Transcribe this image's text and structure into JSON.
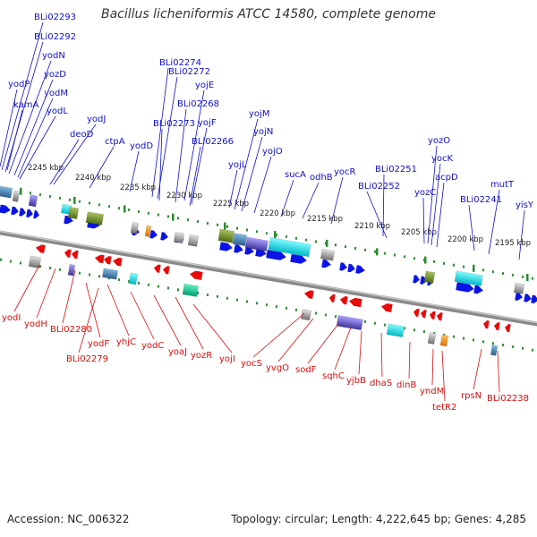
{
  "title": "Bacillus licheniformis ATCC 14580, complete genome",
  "footer": {
    "accession": "Accession: NC_006322",
    "summary": "Topology: circular; Length: 4,222,645 bp; Genes: 4,285"
  },
  "colors": {
    "forward_label": "#1010c8",
    "reverse_label": "#d01010",
    "forward_gene": "#0a14e6",
    "reverse_gene": "#e80a0a",
    "backbone": "#8a8a8a",
    "tick": "#2e8b2e"
  },
  "scale_labels": [
    {
      "text": "2245 kbp"
    },
    {
      "text": "2240 kbp"
    },
    {
      "text": "2235 kbp"
    },
    {
      "text": "2230 kbp"
    },
    {
      "text": "2225 kbp"
    },
    {
      "text": "2220 kbp"
    },
    {
      "text": "2215 kbp"
    },
    {
      "text": "2210 kbp"
    },
    {
      "text": "2205 kbp"
    },
    {
      "text": "2200 kbp"
    },
    {
      "text": "2195 kbp"
    }
  ],
  "forward_labels": [
    "BLi02293",
    "BLi02292",
    "yodN",
    "yozD",
    "yodM",
    "yodP",
    "kamA",
    "yodL",
    "yodJ",
    "deoD",
    "ctpA",
    "yodD",
    "BLi02274",
    "BLi02272",
    "yojE",
    "BLi02268",
    "BLi02273",
    "yojF",
    "BLi02266",
    "yojM",
    "yojN",
    "yojO",
    "yojL",
    "sucA",
    "odhB",
    "yocR",
    "BLi02251",
    "BLi02252",
    "yozO",
    "yocK",
    "acpD",
    "yozC",
    "BLi02241",
    "mutT",
    "yisY"
  ],
  "reverse_labels": [
    "yodI",
    "yodH",
    "BLi02280",
    "yodF",
    "BLi02279",
    "yhjC",
    "yodC",
    "yoaJ",
    "yozR",
    "yojI",
    "yocS",
    "yvgO",
    "sodF",
    "sqhC",
    "yjbB",
    "dhaS",
    "dinB",
    "yndM",
    "tetR2",
    "rpsN",
    "BLi02238"
  ]
}
